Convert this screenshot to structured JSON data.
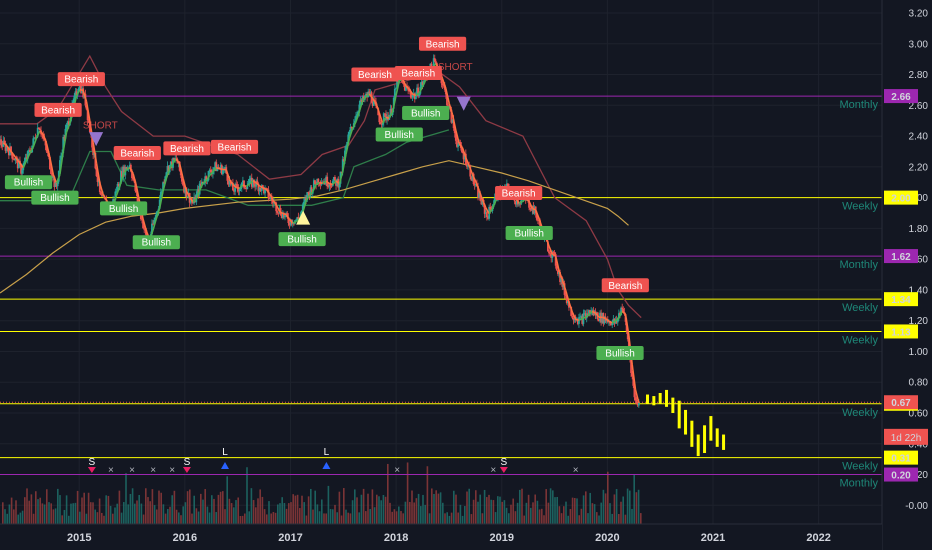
{
  "chart_data": {
    "type": "candlestick",
    "theme": {
      "background": "#131722",
      "grid": "#1e222d",
      "axis_text": "#d1d4dc",
      "up": "#26a69a",
      "down": "#ef5350"
    },
    "y_axis": {
      "ylim": [
        -0.1,
        3.3
      ],
      "ticks": [
        "3.20",
        "3.00",
        "2.80",
        "2.60",
        "2.40",
        "2.20",
        "2.00",
        "1.80",
        "1.60",
        "1.40",
        "1.20",
        "1.00",
        "0.80",
        "0.60",
        "0.40",
        "0.20",
        "-0.00"
      ]
    },
    "x_axis": {
      "xlim": [
        2014.25,
        2022.6
      ],
      "ticks": [
        "2015",
        "2016",
        "2017",
        "2018",
        "2019",
        "2020",
        "2021",
        "2022"
      ]
    },
    "price_path": [
      [
        2014.25,
        2.36
      ],
      [
        2014.35,
        2.3
      ],
      [
        2014.45,
        2.18
      ],
      [
        2014.55,
        2.33
      ],
      [
        2014.62,
        2.48
      ],
      [
        2014.7,
        2.28
      ],
      [
        2014.78,
        2.05
      ],
      [
        2014.85,
        2.38
      ],
      [
        2014.92,
        2.55
      ],
      [
        2015.0,
        2.75
      ],
      [
        2015.06,
        2.62
      ],
      [
        2015.12,
        2.36
      ],
      [
        2015.2,
        2.0
      ],
      [
        2015.3,
        1.93
      ],
      [
        2015.4,
        2.16
      ],
      [
        2015.48,
        2.22
      ],
      [
        2015.56,
        1.95
      ],
      [
        2015.65,
        1.7
      ],
      [
        2015.75,
        1.95
      ],
      [
        2015.82,
        2.18
      ],
      [
        2015.92,
        2.25
      ],
      [
        2016.0,
        2.05
      ],
      [
        2016.08,
        1.96
      ],
      [
        2016.16,
        2.1
      ],
      [
        2016.28,
        2.2
      ],
      [
        2016.38,
        2.18
      ],
      [
        2016.45,
        2.05
      ],
      [
        2016.55,
        2.08
      ],
      [
        2016.65,
        2.1
      ],
      [
        2016.75,
        2.05
      ],
      [
        2016.88,
        1.93
      ],
      [
        2016.98,
        1.85
      ],
      [
        2017.08,
        1.86
      ],
      [
        2017.16,
        2.02
      ],
      [
        2017.26,
        2.12
      ],
      [
        2017.38,
        2.1
      ],
      [
        2017.46,
        2.1
      ],
      [
        2017.55,
        2.4
      ],
      [
        2017.65,
        2.6
      ],
      [
        2017.75,
        2.68
      ],
      [
        2017.85,
        2.5
      ],
      [
        2017.95,
        2.55
      ],
      [
        2018.02,
        2.78
      ],
      [
        2018.1,
        2.7
      ],
      [
        2018.18,
        2.66
      ],
      [
        2018.28,
        2.78
      ],
      [
        2018.36,
        2.88
      ],
      [
        2018.42,
        2.8
      ],
      [
        2018.5,
        2.58
      ],
      [
        2018.58,
        2.35
      ],
      [
        2018.66,
        2.25
      ],
      [
        2018.76,
        2.05
      ],
      [
        2018.86,
        1.88
      ],
      [
        2018.96,
        2.02
      ],
      [
        2019.05,
        2.06
      ],
      [
        2019.14,
        1.98
      ],
      [
        2019.24,
        1.98
      ],
      [
        2019.32,
        1.9
      ],
      [
        2019.4,
        1.73
      ],
      [
        2019.5,
        1.6
      ],
      [
        2019.58,
        1.42
      ],
      [
        2019.66,
        1.25
      ],
      [
        2019.74,
        1.2
      ],
      [
        2019.84,
        1.26
      ],
      [
        2019.94,
        1.22
      ],
      [
        2020.02,
        1.2
      ],
      [
        2020.08,
        1.18
      ],
      [
        2020.14,
        1.3
      ],
      [
        2020.18,
        1.15
      ],
      [
        2020.22,
        0.92
      ],
      [
        2020.26,
        0.68
      ],
      [
        2020.3,
        0.67
      ]
    ],
    "projection_bars": [
      [
        2020.38,
        0.66,
        0.72
      ],
      [
        2020.44,
        0.65,
        0.71
      ],
      [
        2020.5,
        0.66,
        0.73
      ],
      [
        2020.56,
        0.64,
        0.75
      ],
      [
        2020.62,
        0.6,
        0.7
      ],
      [
        2020.68,
        0.5,
        0.68
      ],
      [
        2020.74,
        0.46,
        0.62
      ],
      [
        2020.8,
        0.38,
        0.55
      ],
      [
        2020.86,
        0.32,
        0.46
      ],
      [
        2020.92,
        0.34,
        0.52
      ],
      [
        2020.98,
        0.42,
        0.58
      ],
      [
        2021.04,
        0.38,
        0.5
      ],
      [
        2021.1,
        0.36,
        0.46
      ]
    ],
    "ma_line": [
      [
        2014.25,
        1.38
      ],
      [
        2014.5,
        1.5
      ],
      [
        2014.75,
        1.64
      ],
      [
        2015.0,
        1.76
      ],
      [
        2015.25,
        1.84
      ],
      [
        2015.5,
        1.88
      ],
      [
        2015.75,
        1.9
      ],
      [
        2016.0,
        1.93
      ],
      [
        2016.5,
        1.97
      ],
      [
        2017.0,
        1.99
      ],
      [
        2017.25,
        2.01
      ],
      [
        2017.5,
        2.05
      ],
      [
        2017.75,
        2.1
      ],
      [
        2018.0,
        2.15
      ],
      [
        2018.25,
        2.2
      ],
      [
        2018.5,
        2.24
      ],
      [
        2018.75,
        2.2
      ],
      [
        2019.0,
        2.16
      ],
      [
        2019.25,
        2.11
      ],
      [
        2019.5,
        2.05
      ],
      [
        2019.75,
        1.99
      ],
      [
        2020.0,
        1.93
      ],
      [
        2020.1,
        1.88
      ],
      [
        2020.2,
        1.82
      ]
    ],
    "resistance_line": [
      [
        2014.25,
        2.48
      ],
      [
        2014.6,
        2.48
      ],
      [
        2014.8,
        2.58
      ],
      [
        2015.1,
        2.92
      ],
      [
        2015.25,
        2.72
      ],
      [
        2015.4,
        2.56
      ],
      [
        2015.7,
        2.4
      ],
      [
        2016.0,
        2.4
      ],
      [
        2016.5,
        2.28
      ],
      [
        2016.8,
        2.12
      ],
      [
        2017.1,
        2.15
      ],
      [
        2017.3,
        2.28
      ],
      [
        2017.55,
        2.34
      ],
      [
        2017.7,
        2.5
      ],
      [
        2017.8,
        2.7
      ],
      [
        2018.4,
        2.82
      ],
      [
        2018.6,
        2.72
      ],
      [
        2018.85,
        2.5
      ],
      [
        2019.2,
        2.4
      ],
      [
        2019.5,
        2.0
      ],
      [
        2019.8,
        1.85
      ],
      [
        2020.0,
        1.6
      ],
      [
        2020.1,
        1.4
      ],
      [
        2020.2,
        1.3
      ],
      [
        2020.32,
        1.22
      ]
    ],
    "support_line": [
      [
        2014.25,
        1.98
      ],
      [
        2014.9,
        1.98
      ],
      [
        2015.1,
        2.3
      ],
      [
        2015.3,
        2.3
      ],
      [
        2015.45,
        2.08
      ],
      [
        2015.75,
        2.05
      ],
      [
        2016.2,
        2.05
      ],
      [
        2016.6,
        1.95
      ],
      [
        2016.9,
        1.95
      ],
      [
        2017.2,
        1.95
      ],
      [
        2017.5,
        2.0
      ],
      [
        2017.6,
        2.2
      ],
      [
        2017.9,
        2.28
      ],
      [
        2018.1,
        2.36
      ],
      [
        2018.5,
        2.44
      ]
    ],
    "levels": [
      {
        "value": 2.66,
        "label": "2.66",
        "tag": "Monthly",
        "color": "#9c27b0"
      },
      {
        "value": 2.0,
        "label": "2.00",
        "tag": "Weekly",
        "color": "#ffff00"
      },
      {
        "value": 1.62,
        "label": "1.62",
        "tag": "Monthly",
        "color": "#9c27b0"
      },
      {
        "value": 1.34,
        "label": "1.34",
        "tag": "Weekly",
        "color": "#ffff00"
      },
      {
        "value": 1.13,
        "label": "1.13",
        "tag": "Weekly",
        "color": "#ffff00"
      },
      {
        "value": 0.66,
        "label": "0.66",
        "tag": "Weekly",
        "color": "#ffff00"
      },
      {
        "value": 0.31,
        "label": "0.31",
        "tag": "Weekly",
        "color": "#ffff00"
      },
      {
        "value": 0.2,
        "label": "0.20",
        "tag": "Monthly",
        "color": "#9c27b0"
      }
    ],
    "current_price": {
      "value": 0.67,
      "label": "0.67",
      "countdown": "1d 22h"
    },
    "signals": [
      {
        "x": 2014.8,
        "y": 2.57,
        "label": "Bearish",
        "kind": "bear"
      },
      {
        "x": 2015.02,
        "y": 2.77,
        "label": "Bearish",
        "kind": "bear"
      },
      {
        "x": 2015.55,
        "y": 2.29,
        "label": "Bearish",
        "kind": "bear"
      },
      {
        "x": 2016.02,
        "y": 2.32,
        "label": "Bearish",
        "kind": "bear"
      },
      {
        "x": 2016.47,
        "y": 2.33,
        "label": "Bearish",
        "kind": "bear"
      },
      {
        "x": 2017.8,
        "y": 2.8,
        "label": "Bearish",
        "kind": "bear"
      },
      {
        "x": 2018.21,
        "y": 2.81,
        "label": "Bearish",
        "kind": "bear"
      },
      {
        "x": 2018.44,
        "y": 3.0,
        "label": "Bearish",
        "kind": "bear"
      },
      {
        "x": 2019.16,
        "y": 2.03,
        "label": "Bearish",
        "kind": "bear"
      },
      {
        "x": 2020.17,
        "y": 1.43,
        "label": "Bearish",
        "kind": "bear"
      },
      {
        "x": 2014.52,
        "y": 2.1,
        "label": "Bullish",
        "kind": "bull"
      },
      {
        "x": 2014.77,
        "y": 2.0,
        "label": "Bullish",
        "kind": "bull"
      },
      {
        "x": 2015.42,
        "y": 1.93,
        "label": "Bullish",
        "kind": "bull"
      },
      {
        "x": 2015.73,
        "y": 1.71,
        "label": "Bullish",
        "kind": "bull"
      },
      {
        "x": 2017.11,
        "y": 1.73,
        "label": "Bullish",
        "kind": "bull"
      },
      {
        "x": 2018.03,
        "y": 2.41,
        "label": "Bullish",
        "kind": "bull"
      },
      {
        "x": 2018.28,
        "y": 2.55,
        "label": "Bullish",
        "kind": "bull"
      },
      {
        "x": 2019.26,
        "y": 1.77,
        "label": "Bullish",
        "kind": "bull"
      },
      {
        "x": 2020.12,
        "y": 0.99,
        "label": "Bullish",
        "kind": "bull"
      }
    ],
    "short_texts": [
      {
        "x": 2015.2,
        "y": 2.45,
        "label": "SHORT"
      },
      {
        "x": 2018.56,
        "y": 2.83,
        "label": "SHORT"
      }
    ],
    "triangles": [
      {
        "x": 2015.16,
        "y": 2.38,
        "dir": "down",
        "color": "#9575cd"
      },
      {
        "x": 2018.64,
        "y": 2.61,
        "dir": "down",
        "color": "#9575cd"
      },
      {
        "x": 2017.12,
        "y": 1.87,
        "dir": "up",
        "color": "#fff59d"
      }
    ],
    "sub_markers": [
      {
        "x": 2015.12,
        "glyph": "S",
        "color": "#ffffff",
        "shape": "down",
        "shapeColor": "#e91e63"
      },
      {
        "x": 2015.3,
        "glyph": "×",
        "color": "#b2b5be"
      },
      {
        "x": 2015.5,
        "glyph": "×",
        "color": "#b2b5be"
      },
      {
        "x": 2015.7,
        "glyph": "×",
        "color": "#b2b5be"
      },
      {
        "x": 2015.88,
        "glyph": "×",
        "color": "#b2b5be"
      },
      {
        "x": 2016.02,
        "glyph": "S",
        "color": "#ffffff",
        "shape": "down",
        "shapeColor": "#e91e63"
      },
      {
        "x": 2016.38,
        "glyph": "L",
        "color": "#ffffff",
        "shape": "up",
        "shapeColor": "#2962ff"
      },
      {
        "x": 2017.34,
        "glyph": "L",
        "color": "#ffffff",
        "shape": "up",
        "shapeColor": "#2962ff"
      },
      {
        "x": 2018.01,
        "glyph": "×",
        "color": "#b2b5be"
      },
      {
        "x": 2018.92,
        "glyph": "×",
        "color": "#b2b5be"
      },
      {
        "x": 2019.02,
        "glyph": "S",
        "color": "#ffffff",
        "shape": "down",
        "shapeColor": "#e91e63"
      },
      {
        "x": 2019.7,
        "glyph": "×",
        "color": "#b2b5be"
      }
    ]
  }
}
